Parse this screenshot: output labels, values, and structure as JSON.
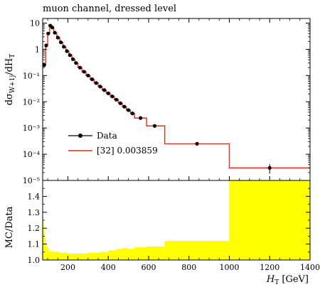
{
  "chart_data": [
    {
      "type": "line",
      "title": "muon channel, dressed level",
      "yscale": "log",
      "ylabel": "dσ_{W+1j}/dH_T",
      "xlim": [
        75,
        1400
      ],
      "ylim": [
        1e-05,
        15
      ],
      "yticks": [
        {
          "value": 1e-05,
          "label": "10⁻⁵"
        },
        {
          "value": 0.0001,
          "label": "10⁻⁴"
        },
        {
          "value": 0.001,
          "label": "10⁻³"
        },
        {
          "value": 0.01,
          "label": "10⁻²"
        },
        {
          "value": 0.1,
          "label": "10⁻¹"
        },
        {
          "value": 1,
          "label": "1"
        },
        {
          "value": 10,
          "label": "10"
        }
      ],
      "legend": {
        "position": "bottom-left"
      },
      "series": [
        {
          "name": "Data",
          "kind": "points",
          "color": "#000000",
          "points": [
            {
              "x": 82.5,
              "y": 0.25,
              "err": 0.02
            },
            {
              "x": 92.5,
              "y": 1.4,
              "err": 0.1
            },
            {
              "x": 102.5,
              "y": 4.0,
              "err": 0.3
            },
            {
              "x": 112.5,
              "y": 8.0,
              "err": 0.5
            },
            {
              "x": 122.5,
              "y": 6.8,
              "err": 0.4
            },
            {
              "x": 135,
              "y": 4.3
            },
            {
              "x": 150,
              "y": 2.8
            },
            {
              "x": 165,
              "y": 1.85
            },
            {
              "x": 180,
              "y": 1.25
            },
            {
              "x": 195,
              "y": 0.85
            },
            {
              "x": 210,
              "y": 0.6
            },
            {
              "x": 225,
              "y": 0.42
            },
            {
              "x": 240,
              "y": 0.3
            },
            {
              "x": 260,
              "y": 0.2
            },
            {
              "x": 280,
              "y": 0.14
            },
            {
              "x": 300,
              "y": 0.1
            },
            {
              "x": 320,
              "y": 0.072
            },
            {
              "x": 340,
              "y": 0.052
            },
            {
              "x": 360,
              "y": 0.038
            },
            {
              "x": 380,
              "y": 0.028
            },
            {
              "x": 400,
              "y": 0.021
            },
            {
              "x": 420,
              "y": 0.016
            },
            {
              "x": 440,
              "y": 0.012
            },
            {
              "x": 460,
              "y": 0.0088
            },
            {
              "x": 480,
              "y": 0.0065
            },
            {
              "x": 500,
              "y": 0.0048
            },
            {
              "x": 520,
              "y": 0.0036
            },
            {
              "x": 560,
              "y": 0.0024
            },
            {
              "x": 630,
              "y": 0.0012
            },
            {
              "x": 840,
              "y": 0.00025
            },
            {
              "x": 1200,
              "y": 3e-05,
              "err": 1.2e-05
            }
          ]
        },
        {
          "name": "[32] 0.003859",
          "kind": "step",
          "color": "#e0301e",
          "bins": [
            {
              "lo": 75,
              "hi": 90,
              "y": 0.26
            },
            {
              "lo": 90,
              "hi": 100,
              "y": 1.5
            },
            {
              "lo": 100,
              "hi": 110,
              "y": 4.2
            },
            {
              "lo": 110,
              "hi": 120,
              "y": 8.3
            },
            {
              "lo": 120,
              "hi": 130,
              "y": 6.9
            },
            {
              "lo": 130,
              "hi": 145,
              "y": 4.3
            },
            {
              "lo": 145,
              "hi": 160,
              "y": 2.8
            },
            {
              "lo": 160,
              "hi": 175,
              "y": 1.85
            },
            {
              "lo": 175,
              "hi": 190,
              "y": 1.25
            },
            {
              "lo": 190,
              "hi": 205,
              "y": 0.85
            },
            {
              "lo": 205,
              "hi": 220,
              "y": 0.6
            },
            {
              "lo": 220,
              "hi": 235,
              "y": 0.42
            },
            {
              "lo": 235,
              "hi": 250,
              "y": 0.3
            },
            {
              "lo": 250,
              "hi": 270,
              "y": 0.2
            },
            {
              "lo": 270,
              "hi": 290,
              "y": 0.14
            },
            {
              "lo": 290,
              "hi": 310,
              "y": 0.1
            },
            {
              "lo": 310,
              "hi": 330,
              "y": 0.072
            },
            {
              "lo": 330,
              "hi": 350,
              "y": 0.052
            },
            {
              "lo": 350,
              "hi": 370,
              "y": 0.038
            },
            {
              "lo": 370,
              "hi": 390,
              "y": 0.028
            },
            {
              "lo": 390,
              "hi": 410,
              "y": 0.021
            },
            {
              "lo": 410,
              "hi": 430,
              "y": 0.016
            },
            {
              "lo": 430,
              "hi": 450,
              "y": 0.012
            },
            {
              "lo": 450,
              "hi": 470,
              "y": 0.0088
            },
            {
              "lo": 470,
              "hi": 490,
              "y": 0.0065
            },
            {
              "lo": 490,
              "hi": 510,
              "y": 0.0048
            },
            {
              "lo": 510,
              "hi": 530,
              "y": 0.0036
            },
            {
              "lo": 530,
              "hi": 590,
              "y": 0.0024
            },
            {
              "lo": 590,
              "hi": 680,
              "y": 0.0012
            },
            {
              "lo": 680,
              "hi": 1000,
              "y": 0.00025
            },
            {
              "lo": 1000,
              "hi": 1400,
              "y": 3e-05
            }
          ]
        }
      ]
    },
    {
      "type": "area",
      "ylabel": "MC/Data",
      "xlabel": "H_T [GeV]",
      "xlim": [
        75,
        1400
      ],
      "ylim": [
        1.0,
        1.5
      ],
      "xticks": [
        200,
        400,
        600,
        800,
        1000,
        1200,
        1400
      ],
      "yticks": [
        1.0,
        1.1,
        1.2,
        1.3,
        1.4
      ],
      "band_color": "#ffff00",
      "band": [
        {
          "lo": 75,
          "hi": 80,
          "y": 1.24
        },
        {
          "lo": 80,
          "hi": 85,
          "y": 1.2
        },
        {
          "lo": 85,
          "hi": 90,
          "y": 1.14
        },
        {
          "lo": 90,
          "hi": 100,
          "y": 1.09
        },
        {
          "lo": 100,
          "hi": 110,
          "y": 1.07
        },
        {
          "lo": 110,
          "hi": 130,
          "y": 1.055
        },
        {
          "lo": 130,
          "hi": 160,
          "y": 1.05
        },
        {
          "lo": 160,
          "hi": 200,
          "y": 1.045
        },
        {
          "lo": 200,
          "hi": 300,
          "y": 1.04
        },
        {
          "lo": 300,
          "hi": 360,
          "y": 1.045
        },
        {
          "lo": 360,
          "hi": 400,
          "y": 1.05
        },
        {
          "lo": 400,
          "hi": 440,
          "y": 1.06
        },
        {
          "lo": 440,
          "hi": 470,
          "y": 1.07
        },
        {
          "lo": 470,
          "hi": 500,
          "y": 1.075
        },
        {
          "lo": 500,
          "hi": 530,
          "y": 1.07
        },
        {
          "lo": 530,
          "hi": 590,
          "y": 1.08
        },
        {
          "lo": 590,
          "hi": 680,
          "y": 1.085
        },
        {
          "lo": 680,
          "hi": 1000,
          "y": 1.12
        },
        {
          "lo": 1000,
          "hi": 1400,
          "y": 1.5
        }
      ]
    }
  ]
}
